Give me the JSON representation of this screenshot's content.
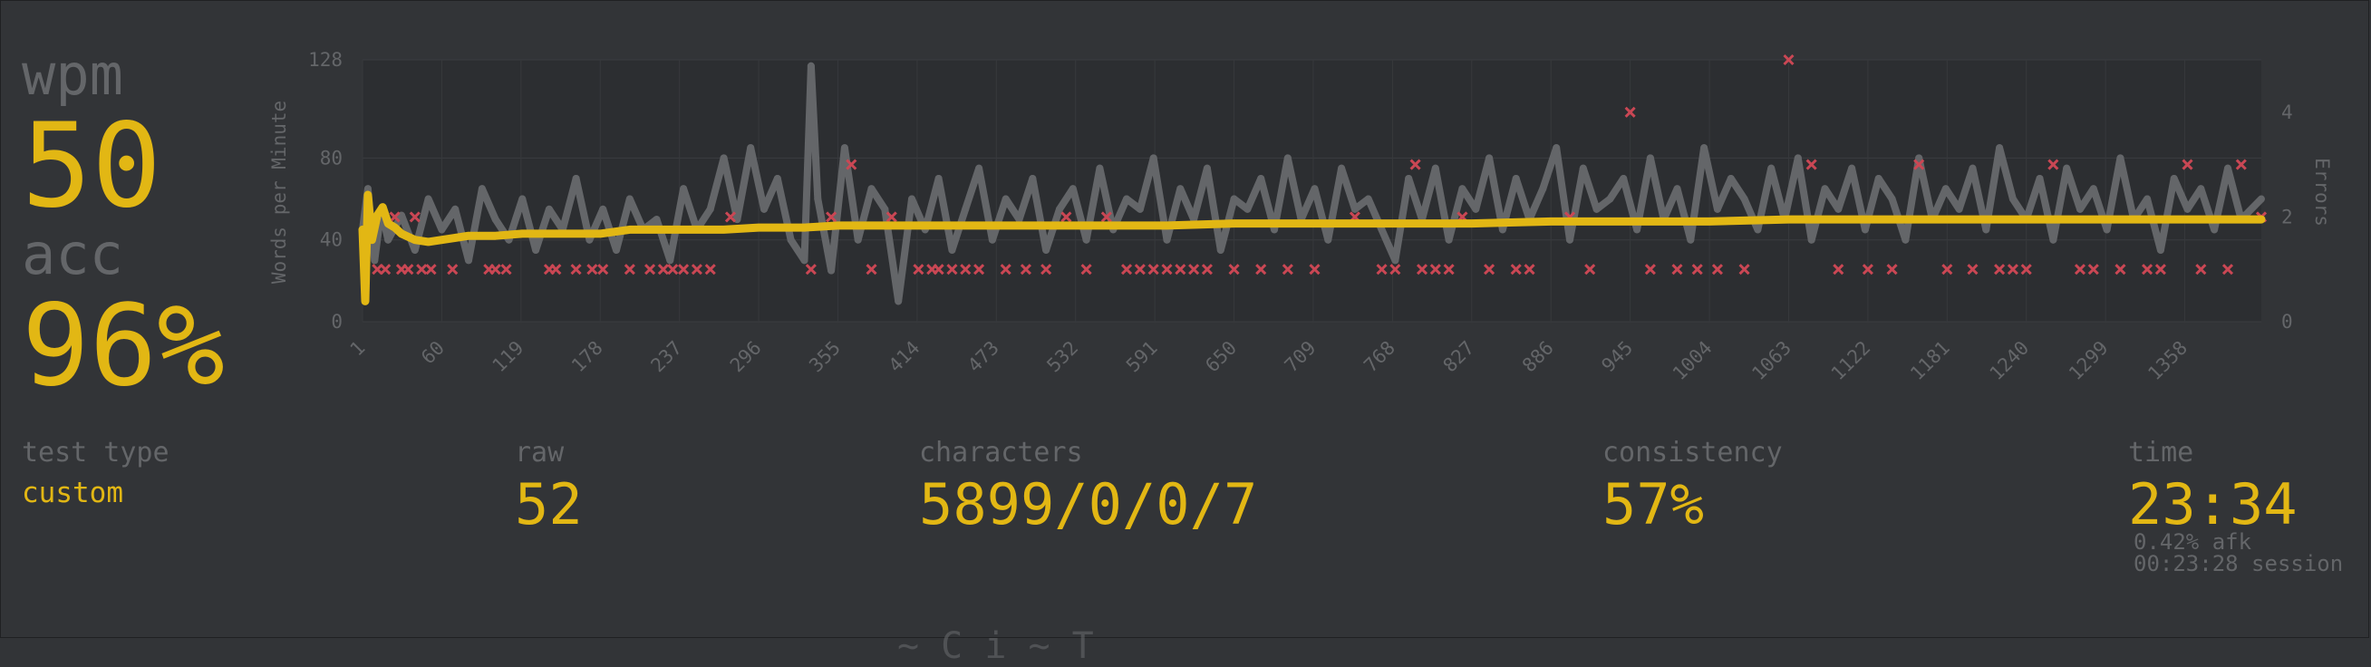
{
  "stats": {
    "wpm_label": "wpm",
    "wpm_value": "50",
    "acc_label": "acc",
    "acc_value": "96%"
  },
  "details": {
    "test_type_label": "test type",
    "test_type_value": "custom",
    "raw_label": "raw",
    "raw_value": "52",
    "characters_label": "characters",
    "characters_value": "5899/0/0/7",
    "consistency_label": "consistency",
    "consistency_value": "57%",
    "time_label": "time",
    "time_value": "23:34",
    "afk_text": "0.42% afk",
    "session_text": "00:23:28 session"
  },
  "colors": {
    "background": "#323437",
    "accent": "#e2b714",
    "sub": "#646669",
    "raw_series": "#646669",
    "error": "#ca4754",
    "plot_bg": "#2c2e31"
  },
  "chart_data": {
    "type": "line",
    "ylabel": "Words per Minute",
    "y2label": "Errors",
    "ylim": [
      0,
      128
    ],
    "y_ticks": [
      0,
      40,
      80,
      128
    ],
    "y2lim": [
      0,
      5
    ],
    "y2_ticks": [
      0,
      2,
      4
    ],
    "x_range": [
      1,
      1415
    ],
    "x_ticks": [
      "1",
      "60",
      "119",
      "178",
      "237",
      "296",
      "355",
      "414",
      "473",
      "532",
      "591",
      "650",
      "709",
      "768",
      "827",
      "886",
      "945",
      "1004",
      "1063",
      "1122",
      "1181",
      "1240",
      "1299",
      "1358"
    ],
    "grid": true,
    "series": [
      {
        "kind": "wpm",
        "x": [
          1,
          3,
          5,
          8,
          12,
          16,
          20,
          25,
          30,
          40,
          50,
          60,
          80,
          100,
          120,
          140,
          160,
          178,
          200,
          237,
          270,
          296,
          330,
          355,
          400,
          450,
          500,
          550,
          600,
          650,
          700,
          768,
          800,
          827,
          886,
          945,
          1004,
          1063,
          1122,
          1181,
          1240,
          1299,
          1358,
          1415
        ],
        "values": [
          45,
          10,
          62,
          40,
          52,
          56,
          48,
          46,
          43,
          40,
          39,
          40,
          42,
          42,
          43,
          43,
          43,
          43,
          45,
          45,
          45,
          46,
          46,
          47,
          47,
          47,
          47,
          47,
          47,
          48,
          48,
          48,
          48,
          48,
          49,
          49,
          49,
          50,
          50,
          50,
          50,
          50,
          50,
          50
        ]
      },
      {
        "kind": "raw",
        "x": [
          1,
          5,
          10,
          15,
          20,
          30,
          40,
          50,
          60,
          70,
          80,
          90,
          100,
          110,
          120,
          130,
          140,
          150,
          160,
          170,
          180,
          190,
          200,
          210,
          220,
          230,
          240,
          250,
          260,
          270,
          280,
          290,
          300,
          310,
          320,
          330,
          335,
          340,
          350,
          360,
          370,
          380,
          390,
          400,
          410,
          420,
          430,
          440,
          450,
          460,
          470,
          480,
          490,
          500,
          510,
          520,
          530,
          540,
          550,
          560,
          570,
          580,
          590,
          600,
          610,
          620,
          630,
          640,
          650,
          660,
          670,
          680,
          690,
          700,
          710,
          720,
          730,
          740,
          750,
          760,
          770,
          780,
          790,
          800,
          810,
          820,
          830,
          840,
          850,
          860,
          870,
          880,
          890,
          900,
          910,
          920,
          930,
          940,
          950,
          960,
          970,
          980,
          990,
          1000,
          1010,
          1020,
          1030,
          1040,
          1050,
          1060,
          1070,
          1080,
          1090,
          1100,
          1110,
          1120,
          1130,
          1140,
          1150,
          1160,
          1170,
          1180,
          1190,
          1200,
          1210,
          1220,
          1230,
          1240,
          1250,
          1260,
          1270,
          1280,
          1290,
          1300,
          1310,
          1320,
          1330,
          1340,
          1350,
          1360,
          1370,
          1380,
          1390,
          1400,
          1415
        ],
        "values": [
          45,
          65,
          30,
          55,
          40,
          52,
          35,
          60,
          45,
          55,
          30,
          65,
          50,
          40,
          60,
          35,
          55,
          45,
          70,
          40,
          55,
          35,
          60,
          45,
          50,
          30,
          65,
          45,
          55,
          80,
          50,
          85,
          55,
          70,
          40,
          30,
          125,
          60,
          25,
          85,
          40,
          65,
          55,
          10,
          60,
          45,
          70,
          35,
          55,
          75,
          40,
          60,
          50,
          70,
          35,
          55,
          65,
          40,
          75,
          45,
          60,
          55,
          80,
          40,
          65,
          50,
          75,
          35,
          60,
          55,
          70,
          45,
          80,
          50,
          65,
          40,
          75,
          55,
          60,
          45,
          30,
          70,
          50,
          75,
          40,
          65,
          55,
          80,
          45,
          70,
          50,
          65,
          85,
          40,
          75,
          55,
          60,
          70,
          45,
          80,
          50,
          65,
          40,
          85,
          55,
          70,
          60,
          45,
          75,
          50,
          80,
          40,
          65,
          55,
          75,
          45,
          70,
          60,
          40,
          80,
          50,
          65,
          55,
          75,
          45,
          85,
          60,
          50,
          70,
          40,
          75,
          55,
          65,
          45,
          80,
          50,
          60,
          35,
          70,
          55,
          65,
          45,
          75,
          50,
          60
        ]
      },
      {
        "kind": "errors",
        "x": [
          12,
          18,
          25,
          30,
          35,
          40,
          45,
          52,
          68,
          95,
          100,
          108,
          140,
          145,
          160,
          172,
          180,
          200,
          215,
          225,
          232,
          240,
          250,
          260,
          275,
          335,
          350,
          365,
          380,
          395,
          415,
          425,
          430,
          440,
          450,
          460,
          480,
          495,
          510,
          525,
          540,
          555,
          570,
          580,
          590,
          600,
          610,
          620,
          630,
          650,
          670,
          690,
          710,
          740,
          760,
          770,
          785,
          790,
          800,
          810,
          820,
          840,
          860,
          870,
          900,
          915,
          945,
          960,
          980,
          995,
          1010,
          1030,
          1063,
          1080,
          1100,
          1122,
          1140,
          1160,
          1181,
          1200,
          1220,
          1230,
          1240,
          1260,
          1280,
          1290,
          1310,
          1330,
          1340,
          1360,
          1370,
          1390,
          1400,
          1415
        ],
        "values": [
          1,
          1,
          2,
          1,
          1,
          2,
          1,
          1,
          1,
          1,
          1,
          1,
          1,
          1,
          1,
          1,
          1,
          1,
          1,
          1,
          1,
          1,
          1,
          1,
          2,
          1,
          2,
          3,
          1,
          2,
          1,
          1,
          1,
          1,
          1,
          1,
          1,
          1,
          1,
          2,
          1,
          2,
          1,
          1,
          1,
          1,
          1,
          1,
          1,
          1,
          1,
          1,
          1,
          2,
          1,
          1,
          3,
          1,
          1,
          1,
          2,
          1,
          1,
          1,
          2,
          1,
          4,
          1,
          1,
          1,
          1,
          1,
          5,
          3,
          1,
          1,
          1,
          3,
          1,
          1,
          1,
          1,
          1,
          3,
          1,
          1,
          1,
          1,
          1,
          3,
          1,
          1,
          3,
          2
        ]
      }
    ]
  },
  "footer": {
    "cut_off_text": "~ C i ~ T"
  }
}
